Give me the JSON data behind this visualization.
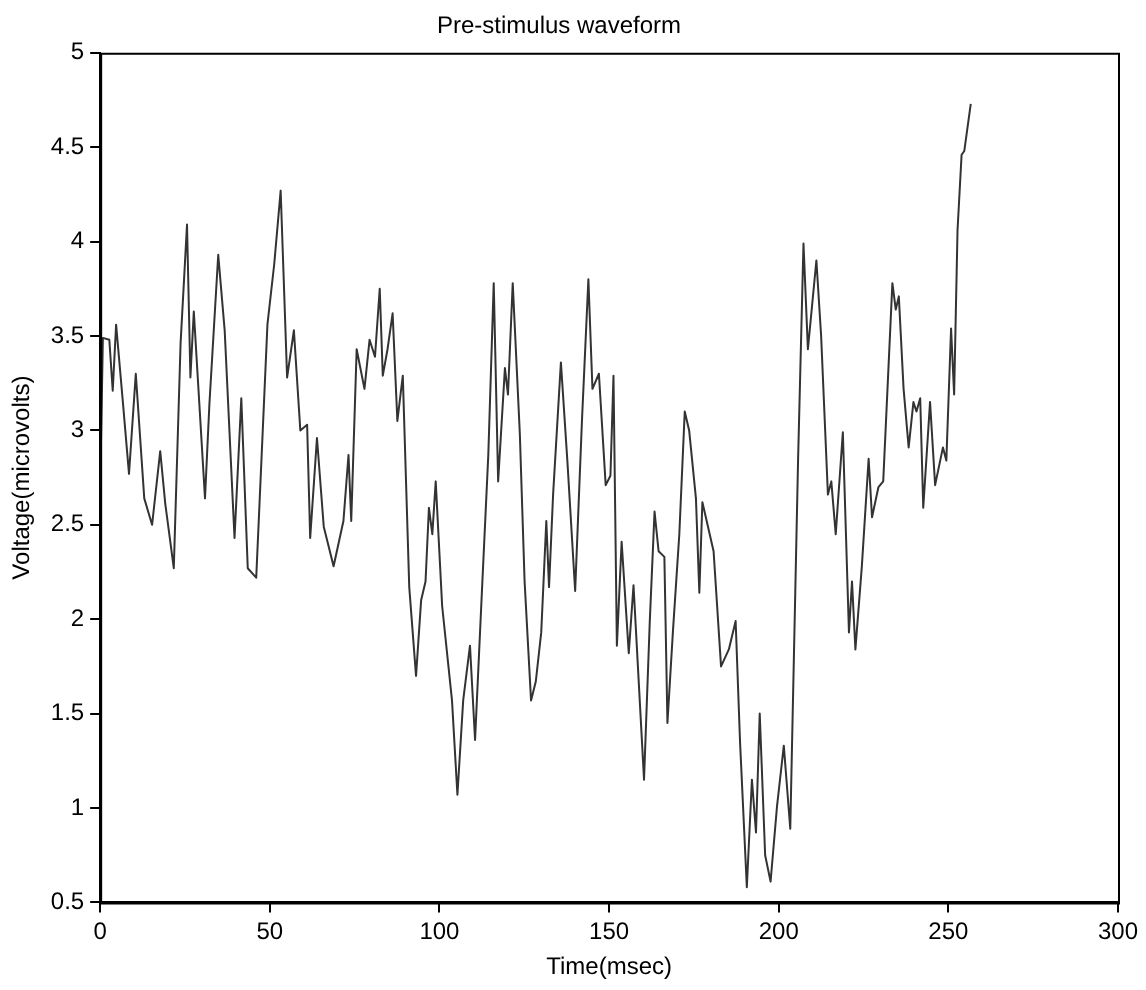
{
  "chart_data": {
    "type": "line",
    "title": "Pre-stimulus waveform",
    "xlabel": "Time(msec)",
    "ylabel": "Voltage(microvolts)",
    "x": [
      0,
      0.8,
      2.7,
      3.7,
      4.7,
      6.6,
      8.5,
      10.5,
      13,
      15.3,
      17.7,
      19.2,
      21.7,
      23.7,
      25.6,
      26.6,
      27.6,
      30.9,
      32.2,
      34.8,
      36.7,
      39.6,
      41.6,
      43.5,
      46,
      49.3,
      51.3,
      53.2,
      55.1,
      57.1,
      59,
      61,
      61.9,
      63.9,
      65.9,
      68.8,
      71.7,
      73.2,
      74,
      75.6,
      77.9,
      79.4,
      81,
      82.4,
      83.3,
      84.7,
      86.2,
      87.6,
      89.2,
      91.1,
      93.1,
      94.6,
      95.9,
      96.9,
      97.9,
      98.9,
      100.8,
      103.7,
      105.3,
      107,
      109,
      110.5,
      112.5,
      114.4,
      116,
      117.3,
      119.3,
      120.2,
      121.6,
      123.7,
      125.1,
      127,
      128.4,
      130,
      131.5,
      132.3,
      133.5,
      135.8,
      137.7,
      140,
      142,
      143.9,
      145.1,
      147,
      149,
      150.4,
      151.3,
      152.3,
      153.7,
      155.8,
      157.2,
      160.3,
      162,
      163.4,
      164.6,
      166.3,
      167.2,
      168.8,
      170.7,
      172.3,
      173.6,
      175.6,
      176.6,
      177.5,
      180.8,
      183,
      185.3,
      187.3,
      188.6,
      190.6,
      192.1,
      193.3,
      194.4,
      196,
      197.6,
      199.5,
      201.5,
      203.4,
      205.7,
      207.3,
      208.6,
      211.1,
      212.5,
      214.5,
      215.5,
      216.8,
      218.9,
      220.7,
      221.6,
      222.6,
      224.5,
      226.5,
      227.5,
      229.4,
      230.8,
      233.5,
      234.5,
      235.4,
      236.8,
      238.3,
      239.7,
      240.6,
      241.7,
      242.6,
      244.6,
      246.1,
      248.4,
      249.4,
      250.8,
      251.7,
      252.7,
      253.9,
      254.7,
      256.6
    ],
    "series": [
      {
        "color": "#333333",
        "values": [
          2.68,
          3.49,
          3.48,
          3.21,
          3.56,
          3.17,
          2.77,
          3.3,
          2.64,
          2.5,
          2.89,
          2.61,
          2.27,
          3.46,
          4.09,
          3.28,
          3.63,
          2.64,
          3.14,
          3.93,
          3.53,
          2.43,
          3.17,
          2.27,
          2.22,
          3.56,
          3.88,
          4.27,
          3.28,
          3.53,
          3.0,
          3.03,
          2.43,
          2.96,
          2.49,
          2.28,
          2.52,
          2.87,
          2.52,
          3.43,
          3.22,
          3.48,
          3.39,
          3.75,
          3.29,
          3.43,
          3.62,
          3.05,
          3.29,
          2.17,
          1.7,
          2.1,
          2.2,
          2.59,
          2.45,
          2.73,
          2.07,
          1.57,
          1.07,
          1.57,
          1.86,
          1.36,
          2.14,
          2.87,
          3.78,
          2.73,
          3.33,
          3.19,
          3.78,
          2.98,
          2.2,
          1.57,
          1.67,
          1.93,
          2.52,
          2.17,
          2.66,
          3.36,
          2.84,
          2.15,
          3.05,
          3.8,
          3.22,
          3.3,
          2.71,
          2.76,
          3.29,
          1.86,
          2.41,
          1.82,
          2.18,
          1.15,
          1.99,
          2.57,
          2.36,
          2.33,
          1.45,
          1.93,
          2.45,
          3.1,
          3.0,
          2.64,
          2.14,
          2.62,
          2.36,
          1.75,
          1.84,
          1.99,
          1.35,
          0.58,
          1.15,
          0.87,
          1.5,
          0.75,
          0.61,
          1.01,
          1.33,
          0.89,
          2.84,
          3.99,
          3.43,
          3.9,
          3.5,
          2.66,
          2.73,
          2.45,
          2.99,
          1.93,
          2.2,
          1.84,
          2.28,
          2.85,
          2.54,
          2.7,
          2.73,
          3.78,
          3.64,
          3.71,
          3.22,
          2.91,
          3.15,
          3.1,
          3.17,
          2.59,
          3.15,
          2.71,
          2.91,
          2.84,
          3.54,
          3.19,
          4.06,
          4.46,
          4.48,
          4.73
        ]
      }
    ],
    "xlim": [
      0,
      300
    ],
    "xticks": [
      0,
      50,
      100,
      150,
      200,
      250,
      300
    ],
    "ylim": [
      0.5,
      5
    ],
    "yticks": [
      0.5,
      1,
      1.5,
      2,
      2.5,
      3,
      3.5,
      4,
      4.5,
      5
    ],
    "grid": false,
    "legend": false,
    "marker": "none",
    "line_style": "solid"
  }
}
